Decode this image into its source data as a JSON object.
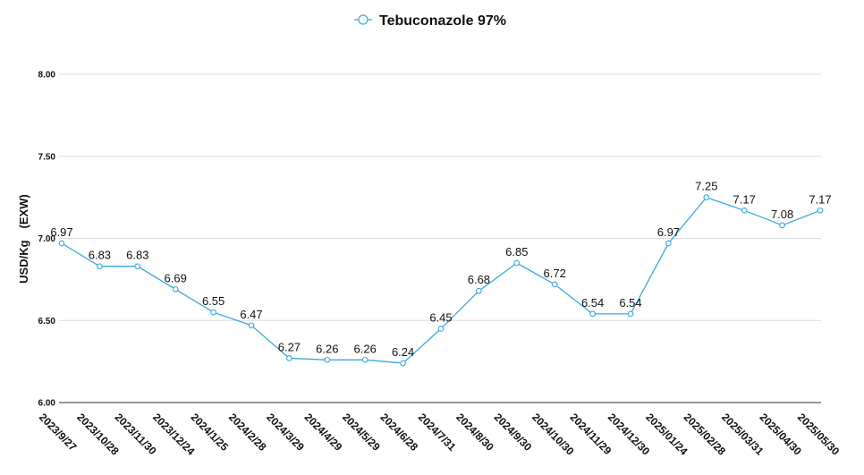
{
  "chart_data": {
    "type": "line",
    "title": "",
    "xlabel": "",
    "ylabel": "USD/Kg　(EXW)",
    "ylim": [
      6.0,
      8.0
    ],
    "yticks": [
      "6.00",
      "6.50",
      "7.00",
      "7.50",
      "8.00"
    ],
    "ytick_values": [
      6.0,
      6.5,
      7.0,
      7.5,
      8.0
    ],
    "grid": true,
    "legend_position": "top-center",
    "color": "#3aa8e0",
    "categories": [
      "2023/9/27",
      "2023/10/28",
      "2023/11/30",
      "2023/12/24",
      "2024/1/25",
      "2024/2/28",
      "2024/3/29",
      "2024/4/29",
      "2024/5/29",
      "2024/6/28",
      "2024/7/31",
      "2024/8/30",
      "2024/9/30",
      "2024/10/30",
      "2024/11/29",
      "2024/12/30",
      "2025/01/24",
      "2025/02/28",
      "2025/03/31",
      "2025/04/30",
      "2025/05/30"
    ],
    "series": [
      {
        "name": "Tebuconazole 97%",
        "values": [
          6.97,
          6.83,
          6.83,
          6.69,
          6.55,
          6.47,
          6.27,
          6.26,
          6.26,
          6.24,
          6.45,
          6.68,
          6.85,
          6.72,
          6.54,
          6.54,
          6.97,
          7.25,
          7.17,
          7.08,
          7.17
        ],
        "labels": [
          "6.97",
          "6.83",
          "6.83",
          "6.69",
          "6.55",
          "6.47",
          "6.27",
          "6.26",
          "6.26",
          "6.24",
          "6.45",
          "6.68",
          "6.85",
          "6.72",
          "6.54",
          "6.54",
          "6.97",
          "7.25",
          "7.17",
          "7.08",
          "7.17"
        ]
      }
    ]
  }
}
